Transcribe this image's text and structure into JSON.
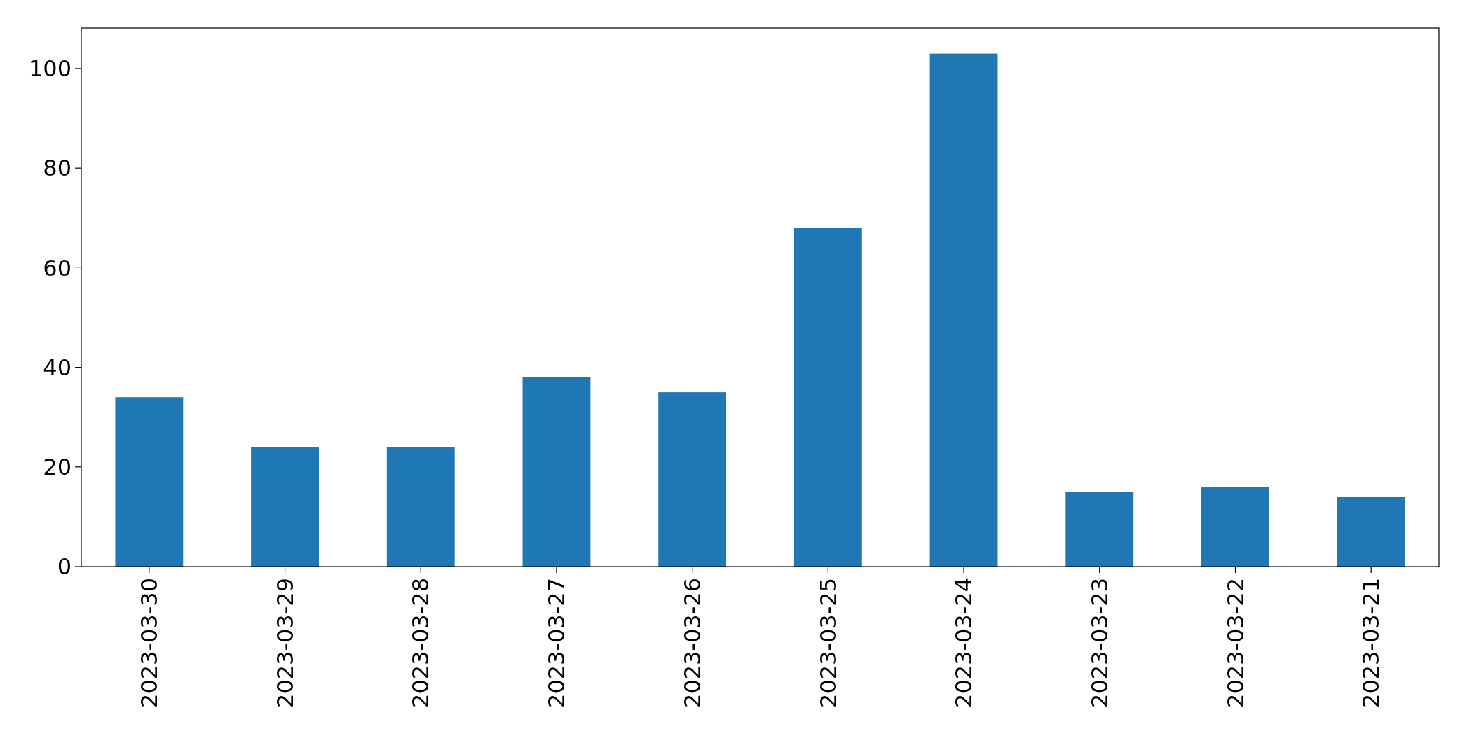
{
  "chart_data": {
    "type": "bar",
    "categories": [
      "2023-03-30",
      "2023-03-29",
      "2023-03-28",
      "2023-03-27",
      "2023-03-26",
      "2023-03-25",
      "2023-03-24",
      "2023-03-23",
      "2023-03-22",
      "2023-03-21"
    ],
    "values": [
      34,
      24,
      24,
      38,
      35,
      68,
      103,
      15,
      16,
      14
    ],
    "color": "#1f77b4",
    "ylim": [
      0,
      108.15
    ],
    "yticks": [
      0,
      20,
      40,
      60,
      80,
      100
    ],
    "grid": false
  }
}
